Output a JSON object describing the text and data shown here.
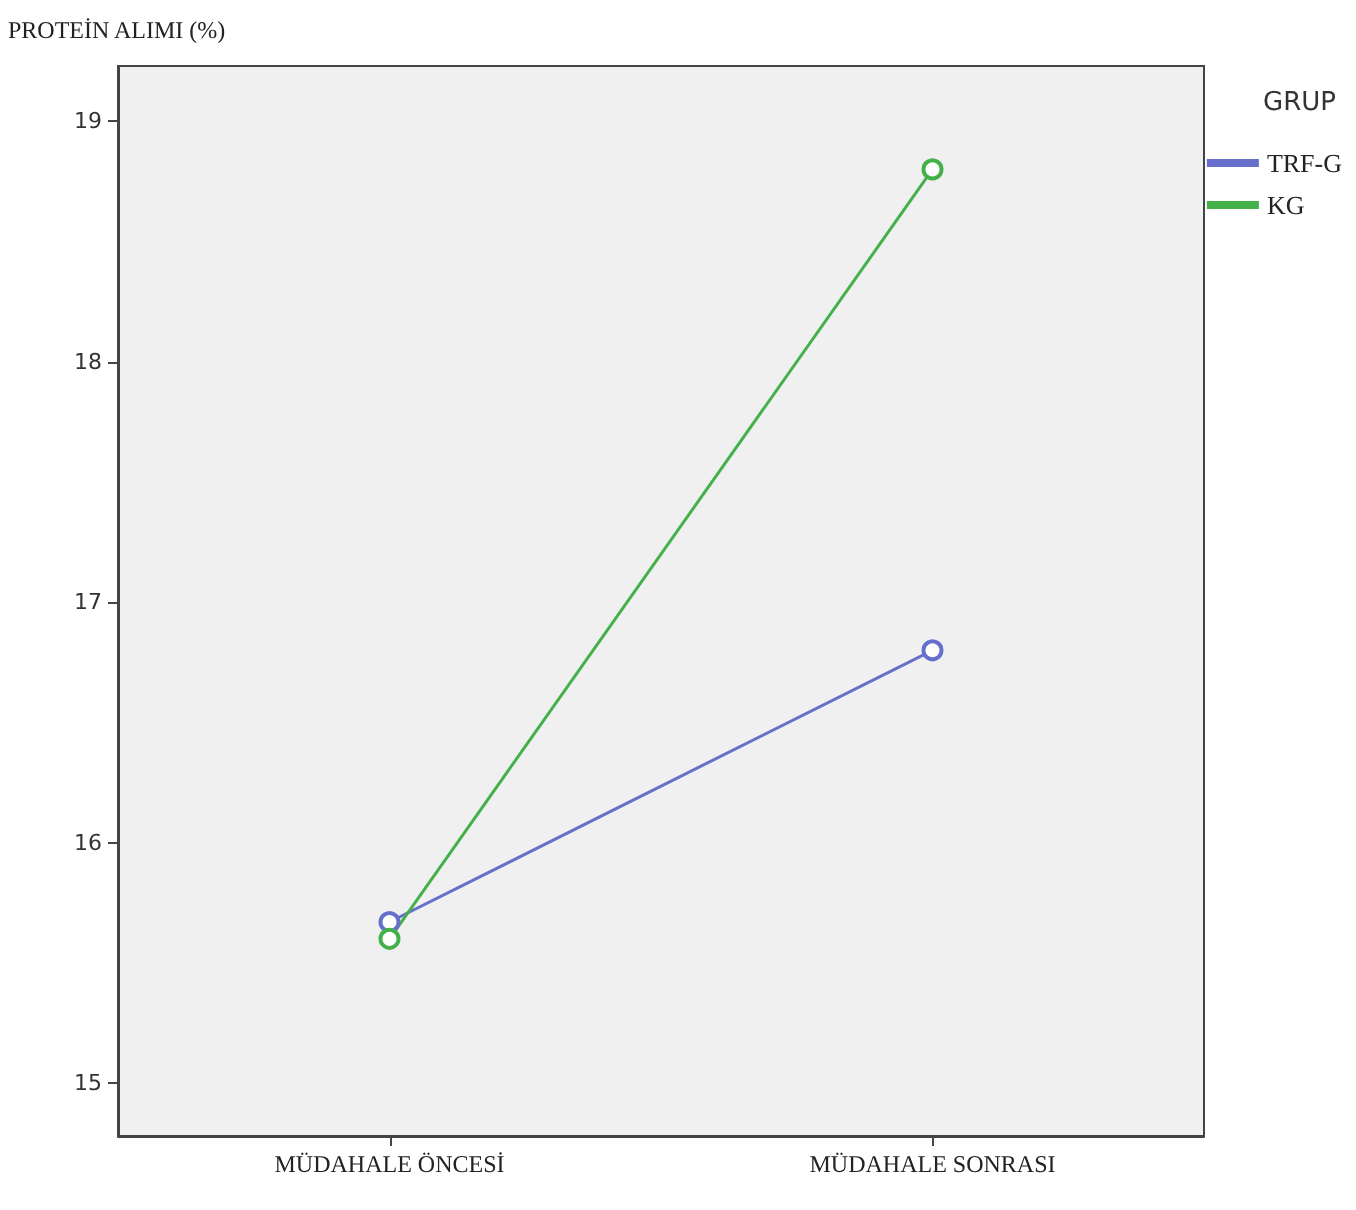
{
  "chart_data": {
    "type": "line",
    "ylabel": "PROTEİN ALIMI (%)",
    "legend_title": "GRUP",
    "categories": [
      "MÜDAHALE ÖNCESİ",
      "MÜDAHALE SONRASI"
    ],
    "series": [
      {
        "name": "TRF-G",
        "color": "#6670cc",
        "values": [
          15.67,
          16.8
        ]
      },
      {
        "name": "KG",
        "color": "#44b04a",
        "values": [
          15.6,
          18.8
        ]
      }
    ],
    "ylim": [
      14.78,
      19.23
    ],
    "yticks": [
      15,
      16,
      17,
      18,
      19
    ],
    "grid": false,
    "legend": "top right",
    "marker": "circle"
  }
}
